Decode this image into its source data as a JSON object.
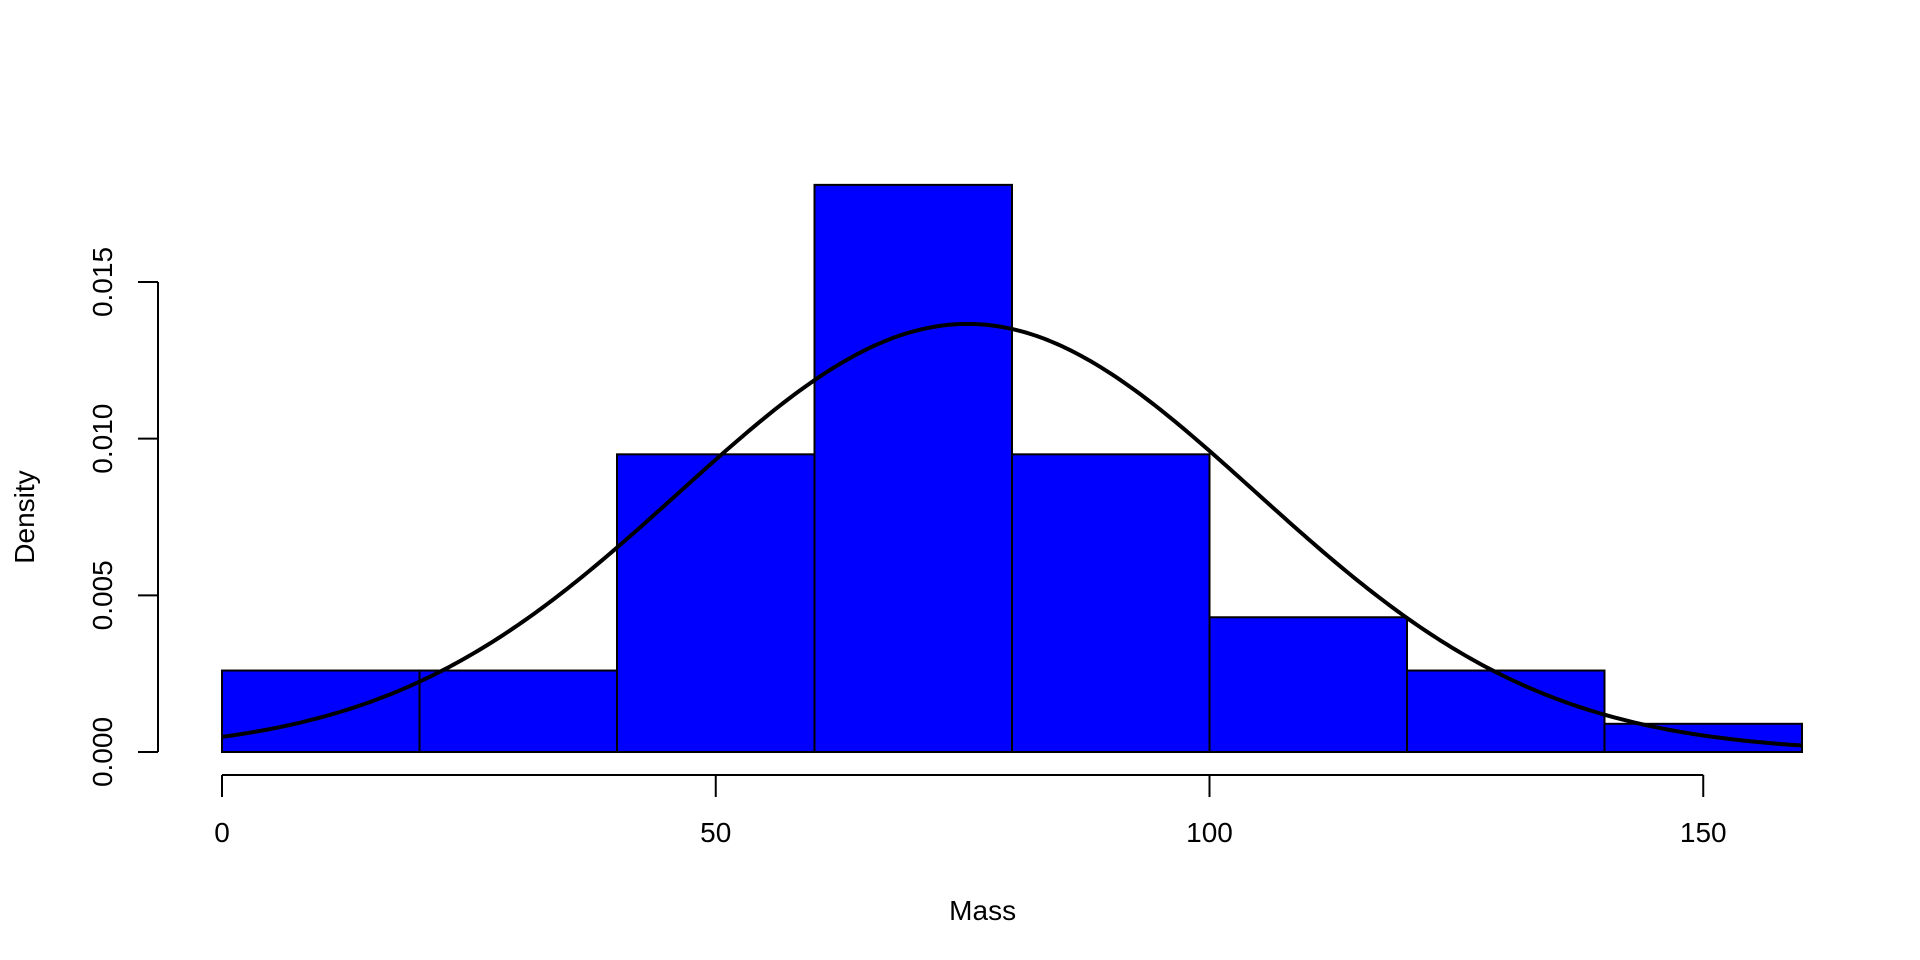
{
  "chart_data": {
    "type": "histogram",
    "title": "",
    "xlabel": "Mass",
    "ylabel": "Density",
    "xlim": [
      0,
      160
    ],
    "ylim": [
      0,
      0.018
    ],
    "bins": [
      {
        "from": 0,
        "to": 20,
        "density": 0.0026
      },
      {
        "from": 20,
        "to": 40,
        "density": 0.0026
      },
      {
        "from": 40,
        "to": 60,
        "density": 0.0095
      },
      {
        "from": 60,
        "to": 80,
        "density": 0.0181
      },
      {
        "from": 80,
        "to": 100,
        "density": 0.0095
      },
      {
        "from": 100,
        "to": 120,
        "density": 0.0043
      },
      {
        "from": 120,
        "to": 140,
        "density": 0.0026
      },
      {
        "from": 140,
        "to": 160,
        "density": 0.0009
      }
    ],
    "x_ticks": [
      0,
      50,
      100,
      150
    ],
    "x_tick_labels": [
      "0",
      "50",
      "100",
      "150"
    ],
    "y_ticks": [
      0,
      0.005,
      0.01,
      0.015
    ],
    "y_tick_labels": [
      "0.000",
      "0.005",
      "0.010",
      "0.015"
    ],
    "density_curve": {
      "mean": 75.5,
      "sd": 29.2
    },
    "bar_color": "#0000ff",
    "bar_edge_color": "#000000",
    "curve_color": "#000000",
    "grid": false,
    "legend": "none"
  }
}
